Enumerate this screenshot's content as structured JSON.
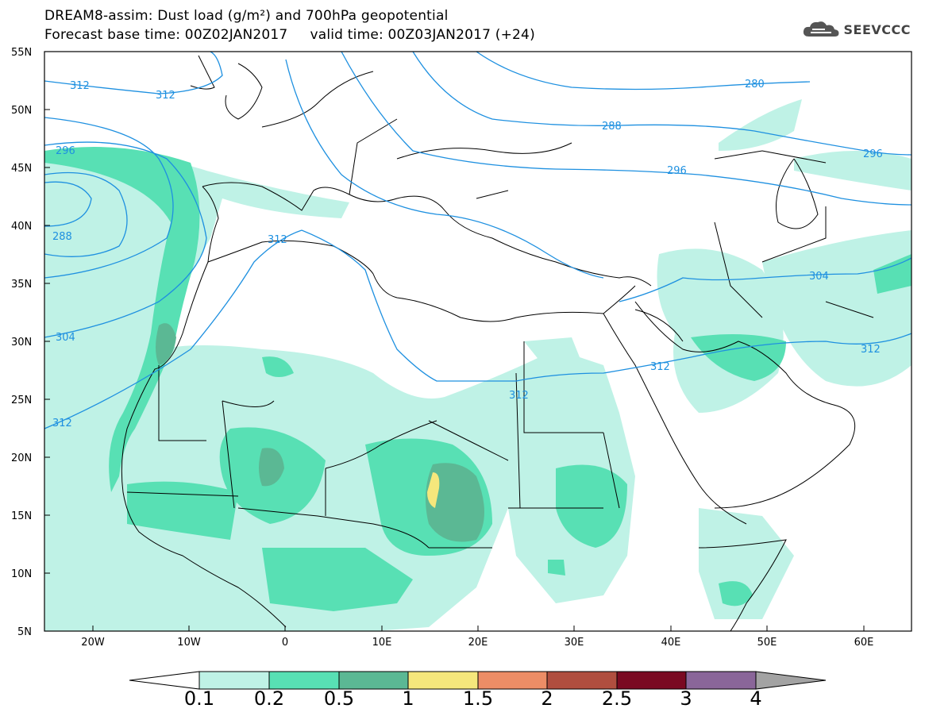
{
  "header": {
    "title_line1": "DREAM8-assim: Dust load (g/m²) and 700hPa geopotential",
    "title_line2": "Forecast base time: 00Z02JAN2017     valid time: 00Z03JAN2017 (+24)",
    "logo_text": "SEEVCCC"
  },
  "map": {
    "lat_labels": [
      "55N",
      "50N",
      "45N",
      "40N",
      "35N",
      "30N",
      "25N",
      "20N",
      "15N",
      "10N",
      "5N"
    ],
    "lon_labels": [
      "20W",
      "10W",
      "0",
      "10E",
      "20E",
      "30E",
      "40E",
      "50E",
      "60E"
    ],
    "contour_labels": [
      "312",
      "312",
      "296",
      "288",
      "304",
      "312",
      "312",
      "312",
      "280",
      "288",
      "296",
      "296",
      "304",
      "312",
      "312"
    ],
    "contour_color": "#1e90e0"
  },
  "colorbar": {
    "labels": [
      "0.1",
      "0.2",
      "0.5",
      "1",
      "1.5",
      "2",
      "2.5",
      "3",
      "4"
    ],
    "colors": [
      "#bff2e6",
      "#58e0b4",
      "#5bb894",
      "#f5e77c",
      "#ec8d66",
      "#b04e3f",
      "#7a0a22",
      "#8a6699",
      "#a3a3a3"
    ]
  }
}
